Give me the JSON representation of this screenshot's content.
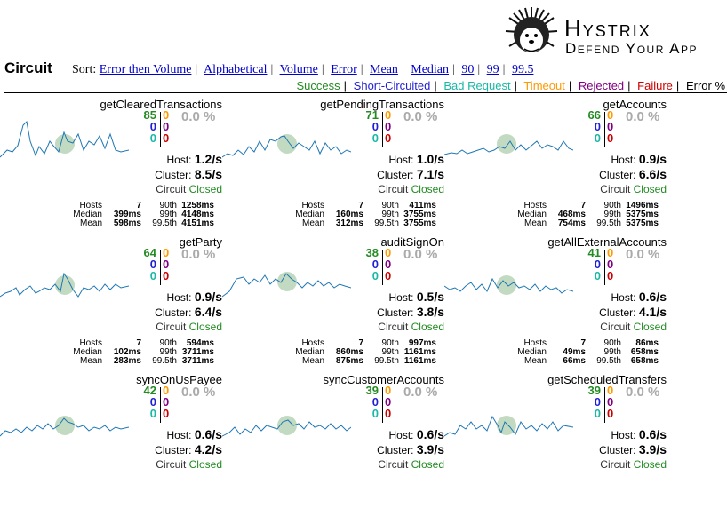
{
  "header": {
    "logo_title": "Hystrix",
    "logo_subtitle": "Defend Your App",
    "page_title": "Circuit",
    "sort_label": "Sort:",
    "sort_options": [
      "Error then Volume",
      "Alphabetical",
      "Volume",
      "Error",
      "Mean",
      "Median",
      "90",
      "99",
      "99.5"
    ],
    "legend": [
      {
        "label": "Success",
        "color": "#228b22"
      },
      {
        "label": "Short-Circuited",
        "color": "#1f1fd3"
      },
      {
        "label": "Bad Request",
        "color": "#1ab8a6"
      },
      {
        "label": "Timeout",
        "color": "#ff9900"
      },
      {
        "label": "Rejected",
        "color": "#800080"
      },
      {
        "label": "Failure",
        "color": "#cc0000"
      },
      {
        "label": "Error %",
        "color": "#000000"
      }
    ]
  },
  "labels": {
    "host": "Host:",
    "cluster": "Cluster:",
    "circuit": "Circuit",
    "hosts": "Hosts",
    "median": "Median",
    "mean": "Mean",
    "p90": "90th",
    "p99": "99th",
    "p995": "99.5th"
  },
  "circuits": [
    {
      "name": "getClearedTransactions",
      "success": "85",
      "short": "0",
      "bad": "0",
      "timeout": "0",
      "rejected": "0",
      "failure": "0",
      "error_pct": "0.0 %",
      "host_rate": "1.2/s",
      "cluster_rate": "8.5/s",
      "status": "Closed",
      "hosts": "7",
      "median": "399ms",
      "mean": "598ms",
      "p90": "1258ms",
      "p99": "4148ms",
      "p995": "4151ms"
    },
    {
      "name": "getPendingTransactions",
      "success": "71",
      "short": "0",
      "bad": "0",
      "timeout": "0",
      "rejected": "0",
      "failure": "0",
      "error_pct": "0.0 %",
      "host_rate": "1.0/s",
      "cluster_rate": "7.1/s",
      "status": "Closed",
      "hosts": "7",
      "median": "160ms",
      "mean": "312ms",
      "p90": "411ms",
      "p99": "3755ms",
      "p995": "3755ms"
    },
    {
      "name": "getAccounts",
      "success": "66",
      "short": "0",
      "bad": "0",
      "timeout": "0",
      "rejected": "0",
      "failure": "0",
      "error_pct": "0.0 %",
      "host_rate": "0.9/s",
      "cluster_rate": "6.6/s",
      "status": "Closed",
      "hosts": "7",
      "median": "468ms",
      "mean": "754ms",
      "p90": "1496ms",
      "p99": "5375ms",
      "p995": "5375ms"
    },
    {
      "name": "getParty",
      "success": "64",
      "short": "0",
      "bad": "0",
      "timeout": "0",
      "rejected": "0",
      "failure": "0",
      "error_pct": "0.0 %",
      "host_rate": "0.9/s",
      "cluster_rate": "6.4/s",
      "status": "Closed",
      "hosts": "7",
      "median": "102ms",
      "mean": "283ms",
      "p90": "594ms",
      "p99": "3711ms",
      "p995": "3711ms"
    },
    {
      "name": "auditSignOn",
      "success": "38",
      "short": "0",
      "bad": "0",
      "timeout": "0",
      "rejected": "0",
      "failure": "0",
      "error_pct": "0.0 %",
      "host_rate": "0.5/s",
      "cluster_rate": "3.8/s",
      "status": "Closed",
      "hosts": "7",
      "median": "860ms",
      "mean": "875ms",
      "p90": "997ms",
      "p99": "1161ms",
      "p995": "1161ms"
    },
    {
      "name": "getAllExternalAccounts",
      "success": "41",
      "short": "0",
      "bad": "0",
      "timeout": "0",
      "rejected": "0",
      "failure": "0",
      "error_pct": "0.0 %",
      "host_rate": "0.6/s",
      "cluster_rate": "4.1/s",
      "status": "Closed",
      "hosts": "7",
      "median": "49ms",
      "mean": "66ms",
      "p90": "86ms",
      "p99": "658ms",
      "p995": "658ms"
    },
    {
      "name": "syncOnUsPayee",
      "success": "42",
      "short": "0",
      "bad": "0",
      "timeout": "0",
      "rejected": "0",
      "failure": "0",
      "error_pct": "0.0 %",
      "host_rate": "0.6/s",
      "cluster_rate": "4.2/s",
      "status": "Closed"
    },
    {
      "name": "syncCustomerAccounts",
      "success": "39",
      "short": "0",
      "bad": "0",
      "timeout": "0",
      "rejected": "0",
      "failure": "0",
      "error_pct": "0.0 %",
      "host_rate": "0.6/s",
      "cluster_rate": "3.9/s",
      "status": "Closed"
    },
    {
      "name": "getScheduledTransfers",
      "success": "39",
      "short": "0",
      "bad": "0",
      "timeout": "0",
      "rejected": "0",
      "failure": "0",
      "error_pct": "0.0 %",
      "host_rate": "0.6/s",
      "cluster_rate": "3.9/s",
      "status": "Closed"
    }
  ]
}
